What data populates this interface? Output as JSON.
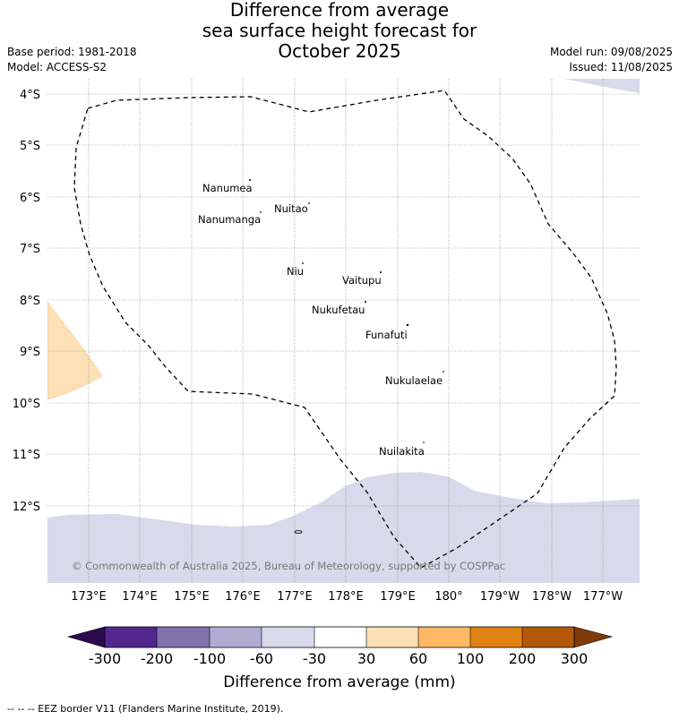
{
  "header": {
    "title_lines": [
      "Difference from average",
      "sea surface height forecast for",
      "October 2025"
    ],
    "base_period": "Base period: 1981-2018",
    "model": "Model: ACCESS-S2",
    "model_run": "Model run: 09/08/2025",
    "issued": "Issued: 11/08/2025"
  },
  "map": {
    "lat_labels": [
      "4°S",
      "5°S",
      "6°S",
      "7°S",
      "8°S",
      "9°S",
      "10°S",
      "11°S",
      "12°S"
    ],
    "lon_labels": [
      "173°E",
      "174°E",
      "175°E",
      "176°E",
      "177°E",
      "178°E",
      "179°E",
      "180°",
      "179°W",
      "178°W",
      "177°W"
    ],
    "islands": [
      {
        "name": "Nanumea"
      },
      {
        "name": "Nuitao"
      },
      {
        "name": "Nanumanga"
      },
      {
        "name": "Niu"
      },
      {
        "name": "Vaitupu"
      },
      {
        "name": "Nukufetau"
      },
      {
        "name": "Funafuti"
      },
      {
        "name": "Nukulaelae"
      },
      {
        "name": "Nuilakita"
      }
    ],
    "copyright": "© Commonwealth of Australia 2025, Bureau of Meteorology, supported by COSPPac",
    "colors": {
      "light_negative": "#d8d8e8",
      "light_positive": "#fde0b8",
      "eez_border": "#000000"
    }
  },
  "legend": {
    "ticks": [
      "-300",
      "-200",
      "-100",
      "-60",
      "-30",
      "30",
      "60",
      "100",
      "200",
      "300"
    ],
    "colors": [
      "#2d0a4e",
      "#54278f",
      "#8073ac",
      "#b2abd2",
      "#d8daeb",
      "#ffffff",
      "#fee0b6",
      "#fdb863",
      "#e08214",
      "#b35806",
      "#7f3b08"
    ],
    "label": "Difference from average (mm)"
  },
  "footer": {
    "text": "--  --  -- EEZ border V11 (Flanders Marine Institute, 2019)."
  }
}
